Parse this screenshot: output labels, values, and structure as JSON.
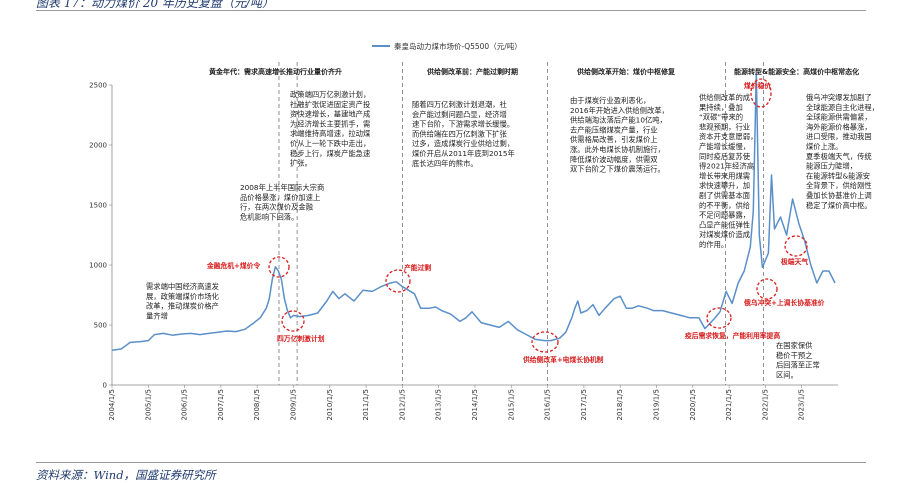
{
  "figure": {
    "title": "图表 17：动力煤价 20 年历史复盘（元/吨）",
    "source": "资料来源：Wind，国盛证券研究所"
  },
  "chart_data": {
    "type": "line",
    "legend": "秦皇岛动力煤市场价-Q5500（元/吨）",
    "legend_position": "top-center",
    "grid": false,
    "ylim": [
      0,
      2500
    ],
    "yticks": [
      "0",
      "500",
      "1000",
      "1500",
      "2000",
      "2500"
    ],
    "xlim": [
      "2004-01",
      "2023-12"
    ],
    "xticks": [
      "2004/1/5",
      "2005/1/5",
      "2006/1/5",
      "2007/1/5",
      "2008/1/5",
      "2009/1/5",
      "2010/1/5",
      "2011/1/5",
      "2012/1/5",
      "2013/1/5",
      "2014/1/5",
      "2015/1/5",
      "2016/1/5",
      "2017/1/5",
      "2018/1/5",
      "2019/1/5",
      "2020/1/5",
      "2021/1/5",
      "2022/1/5",
      "2023/1/5"
    ],
    "series": [
      {
        "name": "秦皇岛动力煤市场价-Q5500（元/吨）",
        "color": "#5b8fc9",
        "points": [
          [
            "2004-01",
            290
          ],
          [
            "2004-04",
            300
          ],
          [
            "2004-07",
            355
          ],
          [
            "2004-10",
            360
          ],
          [
            "2005-01",
            370
          ],
          [
            "2005-03",
            420
          ],
          [
            "2005-06",
            430
          ],
          [
            "2005-09",
            415
          ],
          [
            "2005-12",
            425
          ],
          [
            "2006-03",
            430
          ],
          [
            "2006-06",
            420
          ],
          [
            "2006-09",
            430
          ],
          [
            "2006-12",
            440
          ],
          [
            "2007-03",
            450
          ],
          [
            "2007-06",
            445
          ],
          [
            "2007-09",
            465
          ],
          [
            "2007-12",
            520
          ],
          [
            "2008-02",
            560
          ],
          [
            "2008-04",
            640
          ],
          [
            "2008-05",
            720
          ],
          [
            "2008-06",
            880
          ],
          [
            "2008-07",
            985
          ],
          [
            "2008-08",
            950
          ],
          [
            "2008-09",
            880
          ],
          [
            "2008-10",
            720
          ],
          [
            "2008-11",
            620
          ],
          [
            "2008-12",
            560
          ],
          [
            "2009-01",
            580
          ],
          [
            "2009-03",
            570
          ],
          [
            "2009-06",
            580
          ],
          [
            "2009-09",
            600
          ],
          [
            "2009-12",
            700
          ],
          [
            "2010-02",
            780
          ],
          [
            "2010-04",
            720
          ],
          [
            "2010-06",
            760
          ],
          [
            "2010-09",
            700
          ],
          [
            "2010-12",
            790
          ],
          [
            "2011-03",
            780
          ],
          [
            "2011-06",
            820
          ],
          [
            "2011-09",
            850
          ],
          [
            "2011-11",
            860
          ],
          [
            "2012-01",
            820
          ],
          [
            "2012-03",
            790
          ],
          [
            "2012-05",
            760
          ],
          [
            "2012-07",
            640
          ],
          [
            "2012-10",
            640
          ],
          [
            "2012-12",
            650
          ],
          [
            "2013-02",
            620
          ],
          [
            "2013-05",
            590
          ],
          [
            "2013-08",
            530
          ],
          [
            "2013-10",
            560
          ],
          [
            "2013-12",
            610
          ],
          [
            "2014-03",
            520
          ],
          [
            "2014-06",
            500
          ],
          [
            "2014-09",
            480
          ],
          [
            "2014-12",
            530
          ],
          [
            "2015-03",
            460
          ],
          [
            "2015-06",
            420
          ],
          [
            "2015-09",
            380
          ],
          [
            "2015-12",
            370
          ],
          [
            "2016-02",
            370
          ],
          [
            "2016-05",
            390
          ],
          [
            "2016-07",
            440
          ],
          [
            "2016-09",
            560
          ],
          [
            "2016-10",
            640
          ],
          [
            "2016-11",
            700
          ],
          [
            "2016-12",
            600
          ],
          [
            "2017-02",
            620
          ],
          [
            "2017-04",
            670
          ],
          [
            "2017-06",
            580
          ],
          [
            "2017-08",
            640
          ],
          [
            "2017-11",
            720
          ],
          [
            "2018-01",
            740
          ],
          [
            "2018-03",
            640
          ],
          [
            "2018-05",
            640
          ],
          [
            "2018-07",
            660
          ],
          [
            "2018-10",
            640
          ],
          [
            "2018-12",
            620
          ],
          [
            "2019-03",
            620
          ],
          [
            "2019-06",
            600
          ],
          [
            "2019-09",
            580
          ],
          [
            "2019-12",
            560
          ],
          [
            "2020-03",
            560
          ],
          [
            "2020-05",
            470
          ],
          [
            "2020-08",
            550
          ],
          [
            "2020-10",
            610
          ],
          [
            "2020-12",
            780
          ],
          [
            "2021-02",
            680
          ],
          [
            "2021-04",
            850
          ],
          [
            "2021-06",
            950
          ],
          [
            "2021-08",
            1150
          ],
          [
            "2021-09",
            1450
          ],
          [
            "2021-10",
            2600
          ],
          [
            "2021-11",
            1250
          ],
          [
            "2021-12",
            980
          ],
          [
            "2022-02",
            1100
          ],
          [
            "2022-03",
            1750
          ],
          [
            "2022-04",
            1300
          ],
          [
            "2022-06",
            1400
          ],
          [
            "2022-08",
            1250
          ],
          [
            "2022-10",
            1550
          ],
          [
            "2022-12",
            1350
          ],
          [
            "2023-02",
            1200
          ],
          [
            "2023-04",
            1000
          ],
          [
            "2023-06",
            850
          ],
          [
            "2023-08",
            950
          ],
          [
            "2023-10",
            950
          ],
          [
            "2023-12",
            850
          ]
        ]
      }
    ],
    "phases": [
      {
        "label": "黄金年代：需求高速增长推动行业量价齐升"
      },
      {
        "label": "供给侧改革前：产能过剩时期"
      },
      {
        "label": "供给侧改革开始：煤价中枢修复"
      },
      {
        "label": "能源转型&能源安全：高煤价中枢常态化"
      }
    ],
    "events": [
      {
        "label": "金融危机+煤价令"
      },
      {
        "label": "四万亿刺激计划"
      },
      {
        "label": "产能过剩"
      },
      {
        "label": "供给侧改革+电煤长协机制"
      },
      {
        "label": "疫后需求恢复，产能利用率提高"
      },
      {
        "label": "煤价稳价"
      },
      {
        "label": "俄乌冲突+上调长协基准价"
      },
      {
        "label": "极端天气"
      }
    ],
    "annotations": [
      {
        "lines": [
          "需求端中国经济高速发",
          "展，政策端煤价市场化",
          "改革，推动煤炭价格产",
          "量齐增"
        ]
      },
      {
        "lines": [
          "2008年上半年国际大宗商",
          "品价格暴涨，煤价加速上",
          "行，在两次煤价及金融",
          "危机影响下回落。"
        ]
      },
      {
        "lines": [
          "政策端四万亿刺激计划，",
          "社融扩张促进固定资产投",
          "资快速增长，基建地产成",
          "为经济增长主要抓手，需",
          "求端维持高增速，拉动煤",
          "价从上一轮下跌中走出，",
          "稳步上行，煤炭产能急速",
          "扩张。"
        ]
      },
      {
        "lines": [
          "随着四万亿刺激计划退潮，社",
          "会产能过剩问题凸显，经济增",
          "速下台阶，下游需求增长缓慢。",
          "而供给端在四万亿刺激下扩张",
          "过多，造成煤炭行业供给过剩，",
          "煤价开启从2011年底到2015年",
          "底长达四年的熊市。"
        ]
      },
      {
        "lines": [
          "由于煤炭行业盈利恶化，",
          "2016年开始进入供给侧改革，",
          "供给端淘汰落后产能10亿吨，",
          "去产能压缩煤炭产量，行业",
          "供需格局改善，引发煤价上",
          "涨。此外电煤长协机制施行，",
          "降低煤价波动幅度，供需双",
          "双下台阶之下煤价震荡运行。"
        ]
      },
      {
        "lines": [
          "供给侧改革的成",
          "果持续，叠加",
          "“双碳”带来的",
          "悲观预期，行业",
          "资本开支意愿弱，",
          "产能增长缓慢，",
          "同时疫后复苏使",
          "得2021年经济高",
          "增长带来用煤需",
          "求快速攀升，加",
          "剧了供需基本面",
          "的不平衡，供给",
          "不足问题暴露，",
          "凸显产能低弹性",
          "对煤炭煤价造成",
          "的作用。"
        ]
      },
      {
        "lines": [
          "俄乌冲突爆发加剧了",
          "全球能源自主化进程，",
          "全球能源供需偏紧，",
          "海外能源价格暴涨，",
          "进口受限，推动我国",
          "煤价上涨。",
          "夏季极端天气，传统",
          "能源压力陡增，",
          "在能源转型&能源安",
          "全背景下，供给刚性",
          "叠加长协基准价上调",
          "稳定了煤价高中枢。"
        ]
      },
      {
        "lines": [
          "在国家保供",
          "稳价干预之",
          "后回落至正常",
          "区间。"
        ]
      }
    ]
  }
}
